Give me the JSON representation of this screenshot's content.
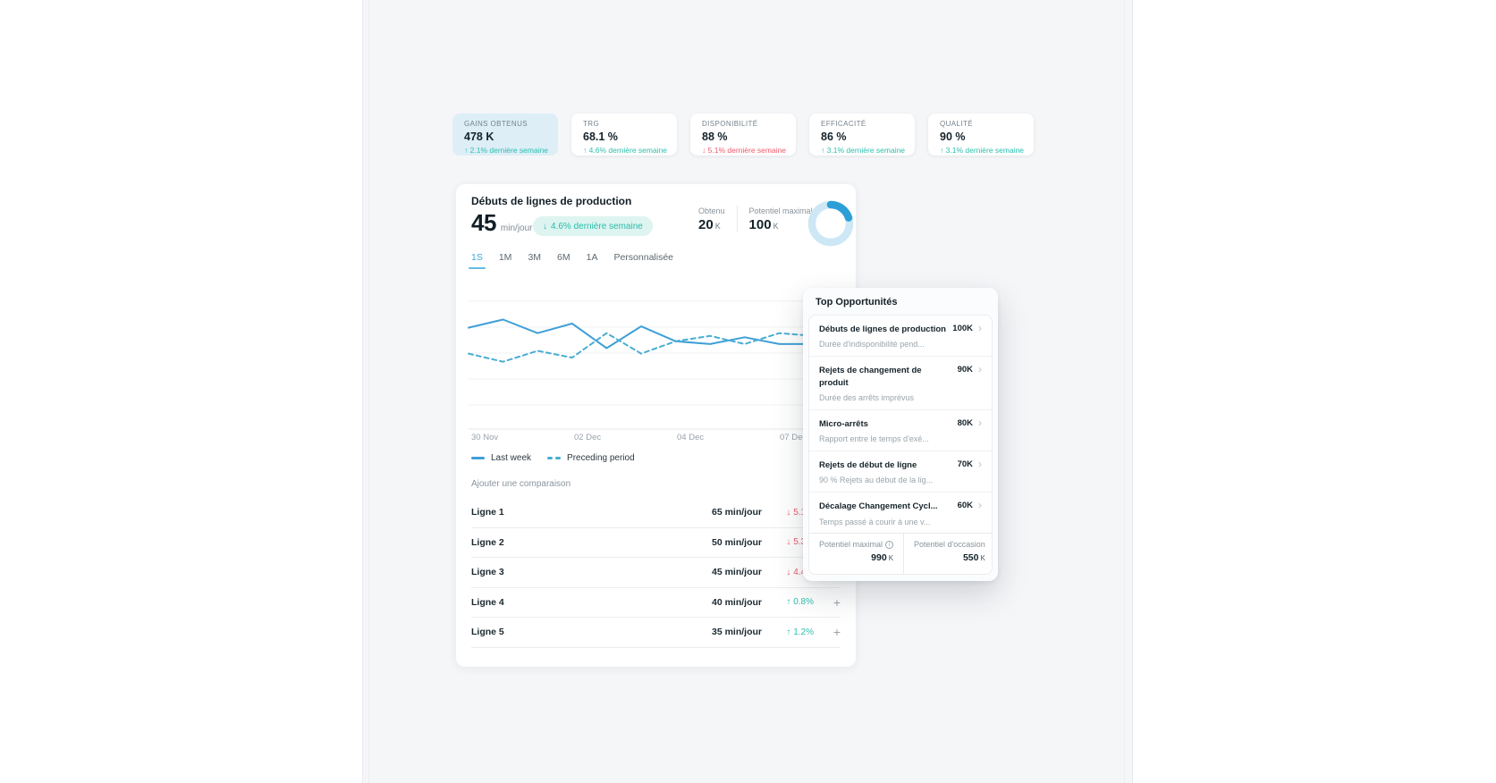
{
  "colors": {
    "positive": "#2bbfae",
    "negative": "#ee5a6a",
    "accent_blue": "#3fa9dc",
    "selected_card_bg": "#ddeef7",
    "badge_bg": "#def4f0",
    "panel_bg": "#f5f6f8"
  },
  "icons": {
    "add": "+",
    "chevron": "›",
    "info": "i"
  },
  "kpis": [
    {
      "label": "GAINS OBTENUS",
      "value": "478 K",
      "arrow": "↑",
      "delta": "2.1% dernière semaine",
      "direction": "up",
      "selected": true
    },
    {
      "label": "TRG",
      "value": "68.1 %",
      "arrow": "↑",
      "delta": "4.6% dernière semaine",
      "direction": "up",
      "selected": false
    },
    {
      "label": "DISPONIBILITÉ",
      "value": "88 %",
      "arrow": "↓",
      "delta": "5.1% dernière semaine",
      "direction": "down",
      "selected": false
    },
    {
      "label": "EFFICACITÉ",
      "value": "86 %",
      "arrow": "↑",
      "delta": "3.1% dernière semaine",
      "direction": "up",
      "selected": false
    },
    {
      "label": "QUALITÉ",
      "value": "90 %",
      "arrow": "↑",
      "delta": "3.1% dernière semaine",
      "direction": "up",
      "selected": false
    }
  ],
  "main_card": {
    "title": "Débuts de lignes de production",
    "headline_value": "45",
    "headline_unit": "min/jour",
    "badge": {
      "arrow": "↓",
      "text": "4.6% dernière semaine"
    },
    "obtained": {
      "label": "Obtenu",
      "value": "20",
      "unit": "K"
    },
    "potential": {
      "label": "Potentiel maximal",
      "value": "100",
      "unit": "K"
    },
    "donut": {
      "percent": 20,
      "track_color": "#cde7f5",
      "arc_color": "#2d9fd8"
    },
    "tabs": [
      {
        "label": "1S",
        "active": true
      },
      {
        "label": "1M",
        "active": false
      },
      {
        "label": "3M",
        "active": false
      },
      {
        "label": "6M",
        "active": false
      },
      {
        "label": "1A",
        "active": false
      },
      {
        "label": "Personnalisée",
        "active": false
      }
    ],
    "add_comparison": "Ajouter une comparaison",
    "lines": [
      {
        "name": "Ligne 1",
        "value": "65 min/jour",
        "arrow": "↓",
        "delta": "5.1%",
        "direction": "down"
      },
      {
        "name": "Ligne 2",
        "value": "50 min/jour",
        "arrow": "↓",
        "delta": "5.3%",
        "direction": "down"
      },
      {
        "name": "Ligne 3",
        "value": "45 min/jour",
        "arrow": "↓",
        "delta": "4.4%",
        "direction": "down"
      },
      {
        "name": "Ligne 4",
        "value": "40 min/jour",
        "arrow": "↑",
        "delta": "0.8%",
        "direction": "up"
      },
      {
        "name": "Ligne 5",
        "value": "35 min/jour",
        "arrow": "↑",
        "delta": "1.2%",
        "direction": "up"
      }
    ]
  },
  "chart_data": {
    "type": "line",
    "title": "Débuts de lignes de production",
    "xlabel": "",
    "ylabel": "min/jour",
    "x_labels": [
      "30 Nov",
      "02 Dec",
      "04 Dec",
      "07 Dec"
    ],
    "ylim": [
      0,
      80
    ],
    "grid": true,
    "legend_position": "bottom",
    "series": [
      {
        "name": "Last week",
        "style": "solid",
        "color": "#3f9fd8",
        "values": [
          56,
          62,
          52,
          59,
          41,
          57,
          46,
          44,
          49,
          44,
          44
        ]
      },
      {
        "name": "Preceding period",
        "style": "dashed",
        "color": "#4aaed2",
        "values": [
          37,
          31,
          39,
          34,
          52,
          37,
          46,
          50,
          44,
          52,
          50
        ]
      }
    ]
  },
  "popup": {
    "title": "Top Opportunités",
    "items": [
      {
        "title": "Débuts de lignes de production",
        "value": "100K",
        "subtitle": "Durée d'indisponibilité pend..."
      },
      {
        "title": "Rejets de changement de produit",
        "value": "90K",
        "subtitle": "Durée des arrêts imprévus"
      },
      {
        "title": "Micro-arrêts",
        "value": "80K",
        "subtitle": "Rapport entre le temps d'exé..."
      },
      {
        "title": "Rejets de début de ligne",
        "value": "70K",
        "subtitle": "90 % Rejets au début de la lig..."
      },
      {
        "title": "Décalage Changement Cycl...",
        "value": "60K",
        "subtitle": "Temps passé à courir à une v..."
      }
    ],
    "footer": {
      "left_label": "Potentiel maximal",
      "left_value": "990",
      "left_unit": "K",
      "right_label": "Potentiel d'occasion",
      "right_value": "550",
      "right_unit": "K"
    }
  }
}
